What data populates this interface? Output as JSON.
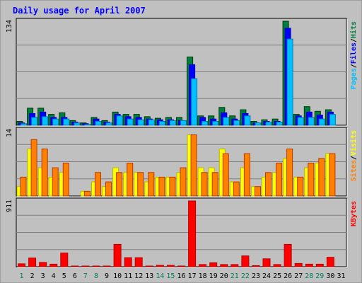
{
  "title": "Daily usage for April 2007",
  "colors": {
    "background": "#c0c0c0",
    "plot_bg": "#c0c0c0",
    "title": "#0000ff",
    "hits": "#008040",
    "files": "#0000ff",
    "pages": "#00c0ff",
    "visits": "#ffff00",
    "sites": "#ff8000",
    "kbytes": "#ff0000",
    "weekend_label": "#00805c",
    "weekday_label": "#000000"
  },
  "chart_data": [
    {
      "type": "bar",
      "panel": "top",
      "ymax_label": "134",
      "ylim": [
        0,
        134
      ],
      "legend_right": [
        "Pages",
        "Files",
        "Hits"
      ],
      "categories": [
        "1",
        "2",
        "3",
        "4",
        "5",
        "6",
        "7",
        "8",
        "9",
        "10",
        "11",
        "12",
        "13",
        "14",
        "15",
        "16",
        "17",
        "18",
        "19",
        "20",
        "21",
        "22",
        "23",
        "24",
        "25",
        "26",
        "27",
        "28",
        "29",
        "30",
        "31"
      ],
      "weekend_days": [
        1,
        7,
        8,
        14,
        15,
        21,
        22,
        28,
        29
      ],
      "series": [
        {
          "name": "Hits",
          "values": [
            5,
            22,
            22,
            14,
            16,
            6,
            3,
            10,
            6,
            17,
            14,
            14,
            11,
            9,
            10,
            10,
            88,
            12,
            12,
            23,
            12,
            20,
            5,
            7,
            8,
            134,
            14,
            24,
            18,
            20,
            0
          ]
        },
        {
          "name": "Files",
          "values": [
            3,
            15,
            17,
            10,
            10,
            4,
            2,
            8,
            4,
            14,
            11,
            10,
            8,
            7,
            7,
            6,
            78,
            10,
            8,
            16,
            8,
            15,
            3,
            5,
            5,
            125,
            12,
            17,
            13,
            17,
            0
          ]
        },
        {
          "name": "Pages",
          "values": [
            2,
            10,
            11,
            8,
            8,
            3,
            1,
            5,
            3,
            12,
            8,
            7,
            7,
            5,
            6,
            6,
            60,
            5,
            5,
            10,
            6,
            12,
            3,
            4,
            4,
            111,
            10,
            10,
            8,
            14,
            0
          ]
        }
      ]
    },
    {
      "type": "bar",
      "panel": "middle",
      "ymax_label": "14",
      "ylim": [
        0,
        14
      ],
      "legend_right": [
        "Sites",
        "Visits"
      ],
      "categories": [
        "1",
        "2",
        "3",
        "4",
        "5",
        "6",
        "7",
        "8",
        "9",
        "10",
        "11",
        "12",
        "13",
        "14",
        "15",
        "16",
        "17",
        "18",
        "19",
        "20",
        "21",
        "22",
        "23",
        "24",
        "25",
        "26",
        "27",
        "28",
        "29",
        "30",
        "31"
      ],
      "series": [
        {
          "name": "Visits",
          "values": [
            2,
            10,
            6,
            4,
            5,
            0,
            1,
            3,
            2,
            6,
            5,
            5,
            3,
            4,
            4,
            5,
            13,
            6,
            6,
            10,
            3,
            6,
            2,
            4,
            5,
            8,
            4,
            6,
            7,
            9,
            0
          ]
        },
        {
          "name": "Sites",
          "values": [
            4,
            12,
            10,
            6,
            7,
            0,
            1,
            5,
            3,
            5,
            7,
            5,
            5,
            4,
            4,
            6,
            13,
            5,
            5,
            9,
            3,
            9,
            2,
            5,
            7,
            10,
            4,
            7,
            8,
            9,
            0
          ]
        }
      ]
    },
    {
      "type": "bar",
      "panel": "bottom",
      "ymax_label": "911",
      "ylim": [
        0,
        911
      ],
      "legend_right": [
        "KBytes"
      ],
      "categories": [
        "1",
        "2",
        "3",
        "4",
        "5",
        "6",
        "7",
        "8",
        "9",
        "10",
        "11",
        "12",
        "13",
        "14",
        "15",
        "16",
        "17",
        "18",
        "19",
        "20",
        "21",
        "22",
        "23",
        "24",
        "25",
        "26",
        "27",
        "28",
        "29",
        "30",
        "31"
      ],
      "series": [
        {
          "name": "KBytes",
          "values": [
            40,
            120,
            60,
            35,
            190,
            8,
            5,
            8,
            8,
            310,
            125,
            125,
            8,
            20,
            20,
            8,
            911,
            30,
            55,
            30,
            30,
            150,
            15,
            110,
            30,
            310,
            45,
            35,
            35,
            130,
            0
          ]
        }
      ]
    }
  ]
}
